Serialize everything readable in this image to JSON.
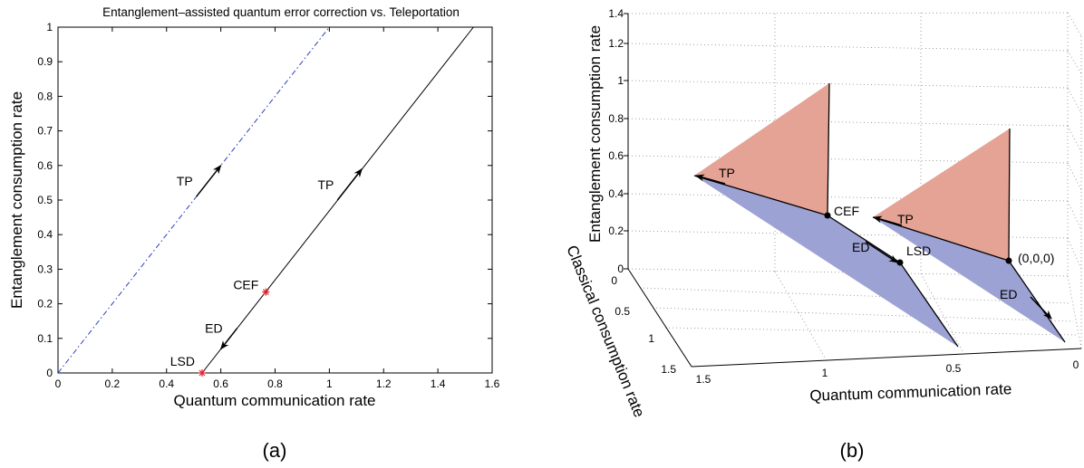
{
  "chart_data": [
    {
      "type": "line",
      "panel": "(a)",
      "title": "Entanglement–assisted quantum error correction vs. Teleportation",
      "xlabel": "Quantum communication rate",
      "ylabel": "Entanglement consumption rate",
      "xlim": [
        0,
        1.6
      ],
      "ylim": [
        0,
        1
      ],
      "xticks": [
        "0",
        "0.2",
        "0.4",
        "0.6",
        "0.8",
        "1",
        "1.2",
        "1.4",
        "1.6"
      ],
      "yticks": [
        "0",
        "0.1",
        "0.2",
        "0.3",
        "0.4",
        "0.5",
        "0.6",
        "0.7",
        "0.8",
        "0.9",
        "1"
      ],
      "grid": false,
      "series": [
        {
          "style": "dash-dot",
          "color": "#2b3fbf",
          "x": [
            0,
            1
          ],
          "y": [
            0,
            1
          ]
        },
        {
          "style": "solid",
          "color": "#000000",
          "x": [
            0.531,
            1.531
          ],
          "y": [
            0,
            1
          ]
        }
      ],
      "points": [
        {
          "label": "CEF",
          "x": 0.766,
          "y": 0.234,
          "color": "#e0202a"
        },
        {
          "label": "LSD",
          "x": 0.531,
          "y": 0.0,
          "color": "#e0202a"
        }
      ],
      "arrows": [
        {
          "label": "TP",
          "x": 0.51,
          "y": 0.51,
          "dx": 0.09,
          "dy": 0.09
        },
        {
          "label": "TP",
          "x": 1.03,
          "y": 0.5,
          "dx": 0.09,
          "dy": 0.09
        },
        {
          "label": "ED",
          "x": 0.66,
          "y": 0.129,
          "dx": -0.06,
          "dy": -0.06
        }
      ]
    },
    {
      "type": "area",
      "panel": "(b)",
      "xlabel": "Quantum communication rate",
      "ylabel": "Entanglement consumption rate",
      "zlabel": "Classical consumption rate",
      "x_ticks": [
        "1.5",
        "1",
        "0.5",
        "0"
      ],
      "y_ticks": [
        "0",
        "0.5",
        "1",
        "1.5"
      ],
      "z_ticks": [
        "0",
        "0.2",
        "0.4",
        "0.6",
        "0.8",
        "1",
        "1.2",
        "1.4"
      ],
      "grid": true,
      "colors": {
        "teleportation_region": "#e4a394",
        "dense_coding_region": "#9da2d4"
      },
      "points": [
        {
          "label": "CEF"
        },
        {
          "label": "LSD"
        },
        {
          "label": "(0,0,0)"
        }
      ],
      "arrows": [
        {
          "label": "TP"
        },
        {
          "label": "ED"
        },
        {
          "label": "TP"
        },
        {
          "label": "ED"
        }
      ]
    }
  ],
  "captions": {
    "a": "(a)",
    "b": "(b)"
  }
}
